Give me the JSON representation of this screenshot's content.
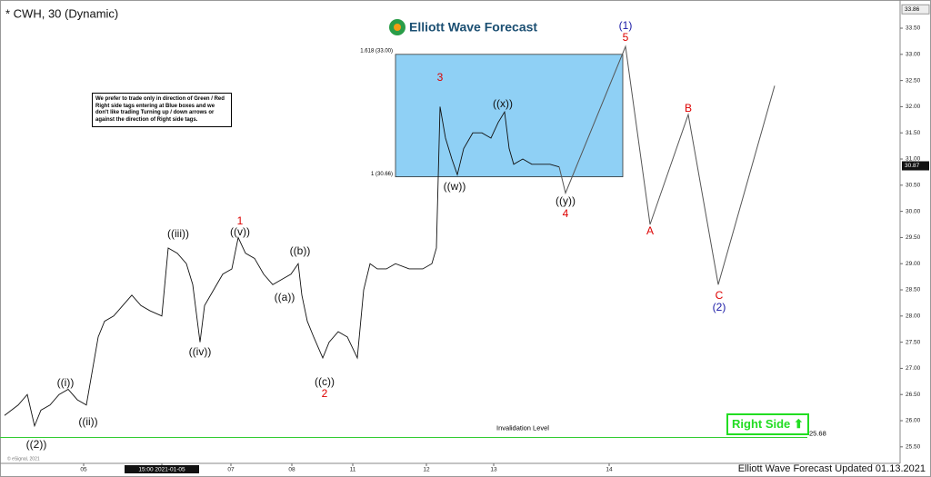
{
  "chart_data": {
    "type": "line",
    "title": "* CWH, 30 (Dynamic)",
    "brand": "Elliott Wave Forecast",
    "footer": "Elliott Wave Forecast Updated 01.13.2021",
    "copyright": "© eSignal, 2021",
    "note": "We prefer to trade only in direction of Green / Red Right side tags entering at Blue boxes and we don't like trading Turning up / down arrows or against the direction of Right side tags.",
    "right_side": "Right Side",
    "xlim": [
      0,
      990
    ],
    "ylim": [
      25.45,
      33.95
    ],
    "xticks": [
      {
        "value": 92,
        "label": "05"
      },
      {
        "value": 178,
        "label": "15:00 2021-01-05"
      },
      {
        "value": 254,
        "label": "07"
      },
      {
        "value": 321,
        "label": "08"
      },
      {
        "value": 388,
        "label": "11"
      },
      {
        "value": 469,
        "label": "12"
      },
      {
        "value": 543,
        "label": "13"
      },
      {
        "value": 670,
        "label": "14"
      }
    ],
    "yticks": [
      {
        "value": 25.5,
        "label": "25.50"
      },
      {
        "value": 26,
        "label": "26.00"
      },
      {
        "value": 26.5,
        "label": "26.50"
      },
      {
        "value": 27,
        "label": "27.00"
      },
      {
        "value": 27.5,
        "label": "27.50"
      },
      {
        "value": 28,
        "label": "28.00"
      },
      {
        "value": 28.5,
        "label": "28.50"
      },
      {
        "value": 29,
        "label": "29.00"
      },
      {
        "value": 29.5,
        "label": "29.50"
      },
      {
        "value": 30,
        "label": "30.00"
      },
      {
        "value": 30.5,
        "label": "30.50"
      },
      {
        "value": 31,
        "label": "31.00"
      },
      {
        "value": 31.5,
        "label": "31.50"
      },
      {
        "value": 32,
        "label": "32.00"
      },
      {
        "value": 32.5,
        "label": "32.50"
      },
      {
        "value": 33,
        "label": "33.00"
      },
      {
        "value": 33.5,
        "label": "33.50"
      }
    ],
    "series": [
      {
        "name": "CWH",
        "color": "#111111",
        "x": [
          5,
          20,
          30,
          38,
          45,
          55,
          65,
          75,
          85,
          95,
          100,
          108,
          115,
          125,
          135,
          145,
          155,
          165,
          178,
          185,
          195,
          205,
          212,
          220,
          225,
          235,
          245,
          255,
          262,
          270,
          280,
          290,
          300,
          310,
          320,
          328,
          332,
          338,
          345,
          355,
          362,
          372,
          382,
          393,
          400,
          407,
          415,
          425,
          435,
          450,
          465,
          475,
          480,
          484,
          490,
          497,
          503,
          510,
          520,
          530,
          540,
          548,
          555,
          560,
          565,
          575,
          585,
          595,
          605,
          615
        ],
        "values": [
          26.1,
          26.3,
          26.5,
          25.9,
          26.2,
          26.3,
          26.5,
          26.6,
          26.4,
          26.3,
          26.8,
          27.6,
          27.9,
          28.0,
          28.2,
          28.4,
          28.2,
          28.1,
          28.0,
          29.3,
          29.2,
          29.0,
          28.6,
          27.5,
          28.2,
          28.5,
          28.8,
          28.9,
          29.5,
          29.2,
          29.1,
          28.8,
          28.6,
          28.7,
          28.8,
          29.0,
          28.4,
          27.9,
          27.6,
          27.2,
          27.5,
          27.7,
          27.6,
          27.2,
          28.5,
          29.0,
          28.9,
          28.9,
          29.0,
          28.9,
          28.9,
          29.0,
          29.3,
          32.0,
          31.4,
          31.0,
          30.7,
          31.2,
          31.5,
          31.5,
          31.4,
          31.7,
          31.9,
          31.2,
          30.9,
          31.0,
          30.9,
          30.9,
          30.9,
          30.85
        ]
      },
      {
        "name": "Projection",
        "color": "#555555",
        "x": [
          615,
          622,
          688,
          715,
          757,
          790,
          852
        ],
        "values": [
          30.85,
          30.35,
          33.15,
          29.75,
          31.85,
          28.6,
          32.4
        ]
      }
    ],
    "fib_box": {
      "low": 30.66,
      "high": 33.0,
      "low_label": "1 (30.66)",
      "high_label": "1.618 (33.00)",
      "color": "#8fd0f5"
    },
    "invalidation": {
      "value": 25.68,
      "text": "Invalidation Level",
      "color": "#33cc33"
    },
    "last_price": 30.87,
    "high_price": 33.86,
    "annotations": [
      {
        "text": "(1)",
        "color": "#1a1aa6"
      },
      {
        "text": "5",
        "color": "#dd0000"
      },
      {
        "text": "3",
        "color": "#dd0000"
      },
      {
        "text": "((x))",
        "color": "#111111"
      },
      {
        "text": "((w))",
        "color": "#111111"
      },
      {
        "text": "((y))",
        "color": "#111111"
      },
      {
        "text": "4",
        "color": "#dd0000"
      },
      {
        "text": "A",
        "color": "#dd0000"
      },
      {
        "text": "B",
        "color": "#dd0000"
      },
      {
        "text": "C",
        "color": "#dd0000"
      },
      {
        "text": "(2)",
        "color": "#1a1aa6"
      },
      {
        "text": "1",
        "color": "#dd0000"
      },
      {
        "text": "((v))",
        "color": "#111111"
      },
      {
        "text": "((iii))",
        "color": "#111111"
      },
      {
        "text": "((b))",
        "color": "#111111"
      },
      {
        "text": "((a))",
        "color": "#111111"
      },
      {
        "text": "((iv))",
        "color": "#111111"
      },
      {
        "text": "((c))",
        "color": "#111111"
      },
      {
        "text": "2",
        "color": "#dd0000"
      },
      {
        "text": "((i))",
        "color": "#111111"
      },
      {
        "text": "((ii))",
        "color": "#111111"
      },
      {
        "text": "((2))",
        "color": "#111111"
      }
    ]
  }
}
